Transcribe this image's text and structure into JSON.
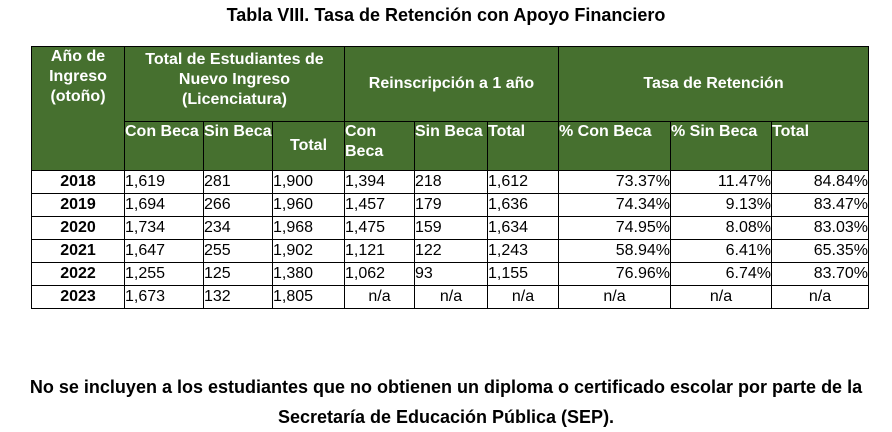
{
  "title": "Tabla VIII. Tasa de Retención con Apoyo Financiero",
  "headers": {
    "year": "Año de Ingreso (otoño)",
    "group_total": "Total de Estudiantes de Nuevo Ingreso (Licenciatura)",
    "group_reins": "Reinscripción a 1 año",
    "group_tasa": "Tasa de Retención",
    "sub": [
      "Con Beca",
      "Sin Beca",
      "Total",
      "Con Beca",
      "Sin Beca",
      "Total",
      "% Con Beca",
      "% Sin Beca",
      "Total"
    ]
  },
  "rows": [
    {
      "year": "2018",
      "ni_con": "1,619",
      "ni_sin": "281",
      "ni_total": "1,900",
      "re_con": "1,394",
      "re_sin": "218",
      "re_total": "1,612",
      "t_con": "73.37%",
      "t_sin": "11.47%",
      "t_total": "84.84%"
    },
    {
      "year": "2019",
      "ni_con": "1,694",
      "ni_sin": "266",
      "ni_total": "1,960",
      "re_con": "1,457",
      "re_sin": "179",
      "re_total": "1,636",
      "t_con": "74.34%",
      "t_sin": "9.13%",
      "t_total": "83.47%"
    },
    {
      "year": "2020",
      "ni_con": "1,734",
      "ni_sin": "234",
      "ni_total": "1,968",
      "re_con": "1,475",
      "re_sin": "159",
      "re_total": "1,634",
      "t_con": "74.95%",
      "t_sin": "8.08%",
      "t_total": "83.03%"
    },
    {
      "year": "2021",
      "ni_con": "1,647",
      "ni_sin": "255",
      "ni_total": "1,902",
      "re_con": "1,121",
      "re_sin": "122",
      "re_total": "1,243",
      "t_con": "58.94%",
      "t_sin": "6.41%",
      "t_total": "65.35%"
    },
    {
      "year": "2022",
      "ni_con": "1,255",
      "ni_sin": "125",
      "ni_total": "1,380",
      "re_con": "1,062",
      "re_sin": "93",
      "re_total": "1,155",
      "t_con": "76.96%",
      "t_sin": "6.74%",
      "t_total": "83.70%"
    },
    {
      "year": "2023",
      "ni_con": "1,673",
      "ni_sin": "132",
      "ni_total": "1,805",
      "re_con": "n/a",
      "re_sin": "n/a",
      "re_total": "n/a",
      "t_con": "n/a",
      "t_sin": "n/a",
      "t_total": "n/a"
    }
  ],
  "note": {
    "line1": "No se incluyen a los estudiantes que no obtienen un diploma o certificado escolar por parte de la",
    "line2": "Secretaría de Educación Pública (SEP)."
  },
  "colors": {
    "header_bg": "#46702f",
    "header_text": "#ffffff"
  }
}
